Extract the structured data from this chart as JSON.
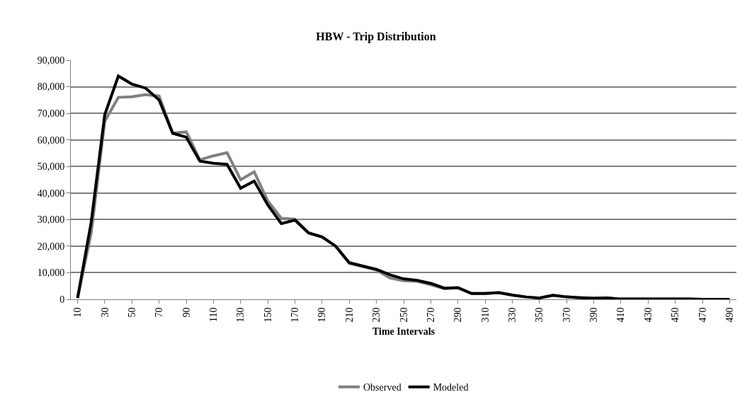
{
  "chart_data": {
    "type": "line",
    "title": "HBW - Trip Distribution",
    "xlabel": "Time Intervals",
    "categories": [
      "10",
      null,
      "30",
      null,
      "50",
      null,
      "70",
      null,
      "90",
      null,
      "110",
      null,
      "130",
      null,
      "150",
      null,
      "170",
      null,
      "190",
      null,
      "210",
      null,
      "230",
      null,
      "250",
      null,
      "270",
      null,
      "290",
      null,
      "310",
      null,
      "330",
      null,
      "350",
      null,
      "370",
      null,
      "390",
      null,
      "410",
      null,
      "430",
      null,
      "450",
      null,
      "470",
      null,
      "490"
    ],
    "series": [
      {
        "name": "Observed",
        "color": "#808080",
        "values": [
          500,
          25000,
          67000,
          76000,
          76200,
          77000,
          76500,
          62500,
          63000,
          52500,
          54000,
          55200,
          45000,
          48000,
          37000,
          30500,
          30200,
          25000,
          23500,
          20000,
          13500,
          12300,
          11000,
          8000,
          7000,
          6800,
          5500,
          4000,
          4300,
          2200,
          2200,
          2500,
          1600,
          900,
          500,
          1500,
          900,
          600,
          400,
          500,
          100,
          100,
          100,
          100,
          100,
          100,
          0,
          0,
          0
        ]
      },
      {
        "name": "Modeled",
        "color": "#000000",
        "values": [
          500,
          29000,
          69500,
          84000,
          81000,
          79500,
          75000,
          62500,
          61000,
          52000,
          51200,
          50800,
          41800,
          44500,
          35500,
          28500,
          29800,
          25000,
          23500,
          20000,
          13800,
          12500,
          11300,
          9200,
          7700,
          7100,
          6000,
          4200,
          4400,
          2200,
          2200,
          2500,
          1600,
          900,
          500,
          1500,
          900,
          600,
          400,
          500,
          100,
          100,
          100,
          100,
          100,
          100,
          0,
          0,
          0
        ]
      }
    ],
    "ylim": [
      0,
      90000
    ],
    "yticks": [
      {
        "value": 0,
        "label": "0"
      },
      {
        "value": 10000,
        "label": "10,000"
      },
      {
        "value": 20000,
        "label": "20,000"
      },
      {
        "value": 30000,
        "label": "30,000"
      },
      {
        "value": 40000,
        "label": "40,000"
      },
      {
        "value": 50000,
        "label": "50,000"
      },
      {
        "value": 60000,
        "label": "60,000"
      },
      {
        "value": 70000,
        "label": "70,000"
      },
      {
        "value": 80000,
        "label": "80,000"
      },
      {
        "value": 90000,
        "label": "90,000"
      }
    ],
    "grid": "y",
    "legend": "bottom",
    "marker": "none",
    "line_style": "solid"
  }
}
